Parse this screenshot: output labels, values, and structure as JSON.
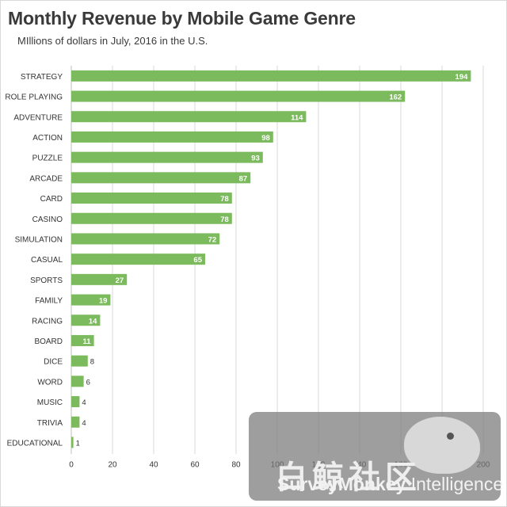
{
  "chart_data": {
    "type": "bar",
    "orientation": "horizontal",
    "title": "Monthly Revenue by Mobile Game Genre",
    "subtitle": "MIllions of dollars in July, 2016 in the U.S.",
    "categories": [
      "STRATEGY",
      "ROLE PLAYING",
      "ADVENTURE",
      "ACTION",
      "PUZZLE",
      "ARCADE",
      "CARD",
      "CASINO",
      "SIMULATION",
      "CASUAL",
      "SPORTS",
      "FAMILY",
      "RACING",
      "BOARD",
      "DICE",
      "WORD",
      "MUSIC",
      "TRIVIA",
      "EDUCATIONAL"
    ],
    "values": [
      194,
      162,
      114,
      98,
      93,
      87,
      78,
      78,
      72,
      65,
      27,
      19,
      14,
      11,
      8,
      6,
      4,
      4,
      1
    ],
    "xlim": [
      0,
      200
    ],
    "xticks": [
      0,
      20,
      40,
      60,
      80,
      100,
      120,
      140,
      160,
      180,
      200
    ],
    "grid": true,
    "bar_color": "#7cba5e",
    "grid_color": "#d9d9d9"
  },
  "watermark": {
    "cn_text": "白鲸社区",
    "brand_bold": "SurveyMonkey",
    "brand_light": " Intelligence"
  }
}
